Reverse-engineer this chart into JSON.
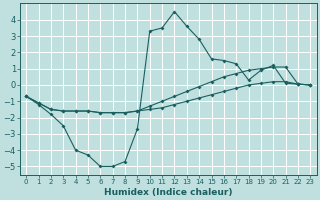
{
  "xlabel": "Humidex (Indice chaleur)",
  "ylabel": "",
  "bg_color": "#c0e0e0",
  "grid_color": "#ffffff",
  "line_color": "#1a5f5f",
  "xlim": [
    -0.5,
    23.5
  ],
  "ylim": [
    -5.5,
    5.0
  ],
  "xticks": [
    0,
    1,
    2,
    3,
    4,
    5,
    6,
    7,
    8,
    9,
    10,
    11,
    12,
    13,
    14,
    15,
    16,
    17,
    18,
    19,
    20,
    21,
    22,
    23
  ],
  "yticks": [
    -5,
    -4,
    -3,
    -2,
    -1,
    0,
    1,
    2,
    3,
    4
  ],
  "line1_x": [
    0,
    1,
    2,
    3,
    4,
    5,
    6,
    7,
    8,
    9,
    10,
    11,
    12,
    13,
    14,
    15,
    16,
    17,
    18,
    19,
    20,
    21,
    22,
    23
  ],
  "line1_y": [
    -0.7,
    -1.2,
    -1.8,
    -2.5,
    -4.0,
    -4.3,
    -5.0,
    -5.0,
    -4.7,
    -2.7,
    3.3,
    3.5,
    4.5,
    3.6,
    2.8,
    1.6,
    1.5,
    1.3,
    0.3,
    0.9,
    1.2,
    0.1,
    0.05,
    0.0
  ],
  "line2_x": [
    0,
    1,
    2,
    3,
    4,
    5,
    6,
    7,
    8,
    9,
    10,
    11,
    12,
    13,
    14,
    15,
    16,
    17,
    18,
    19,
    20,
    21,
    22,
    23
  ],
  "line2_y": [
    -0.7,
    -1.1,
    -1.5,
    -1.6,
    -1.6,
    -1.6,
    -1.7,
    -1.7,
    -1.7,
    -1.6,
    -1.5,
    -1.4,
    -1.2,
    -1.0,
    -0.8,
    -0.6,
    -0.4,
    -0.2,
    0.0,
    0.1,
    0.2,
    0.2,
    0.05,
    0.0
  ],
  "line3_x": [
    0,
    1,
    2,
    3,
    4,
    5,
    6,
    7,
    8,
    9,
    10,
    11,
    12,
    13,
    14,
    15,
    16,
    17,
    18,
    19,
    20,
    21,
    22,
    23
  ],
  "line3_y": [
    -0.7,
    -1.1,
    -1.5,
    -1.6,
    -1.6,
    -1.6,
    -1.7,
    -1.7,
    -1.7,
    -1.6,
    -1.3,
    -1.0,
    -0.7,
    -0.4,
    -0.1,
    0.2,
    0.5,
    0.7,
    0.9,
    1.0,
    1.1,
    1.1,
    0.05,
    0.0
  ]
}
